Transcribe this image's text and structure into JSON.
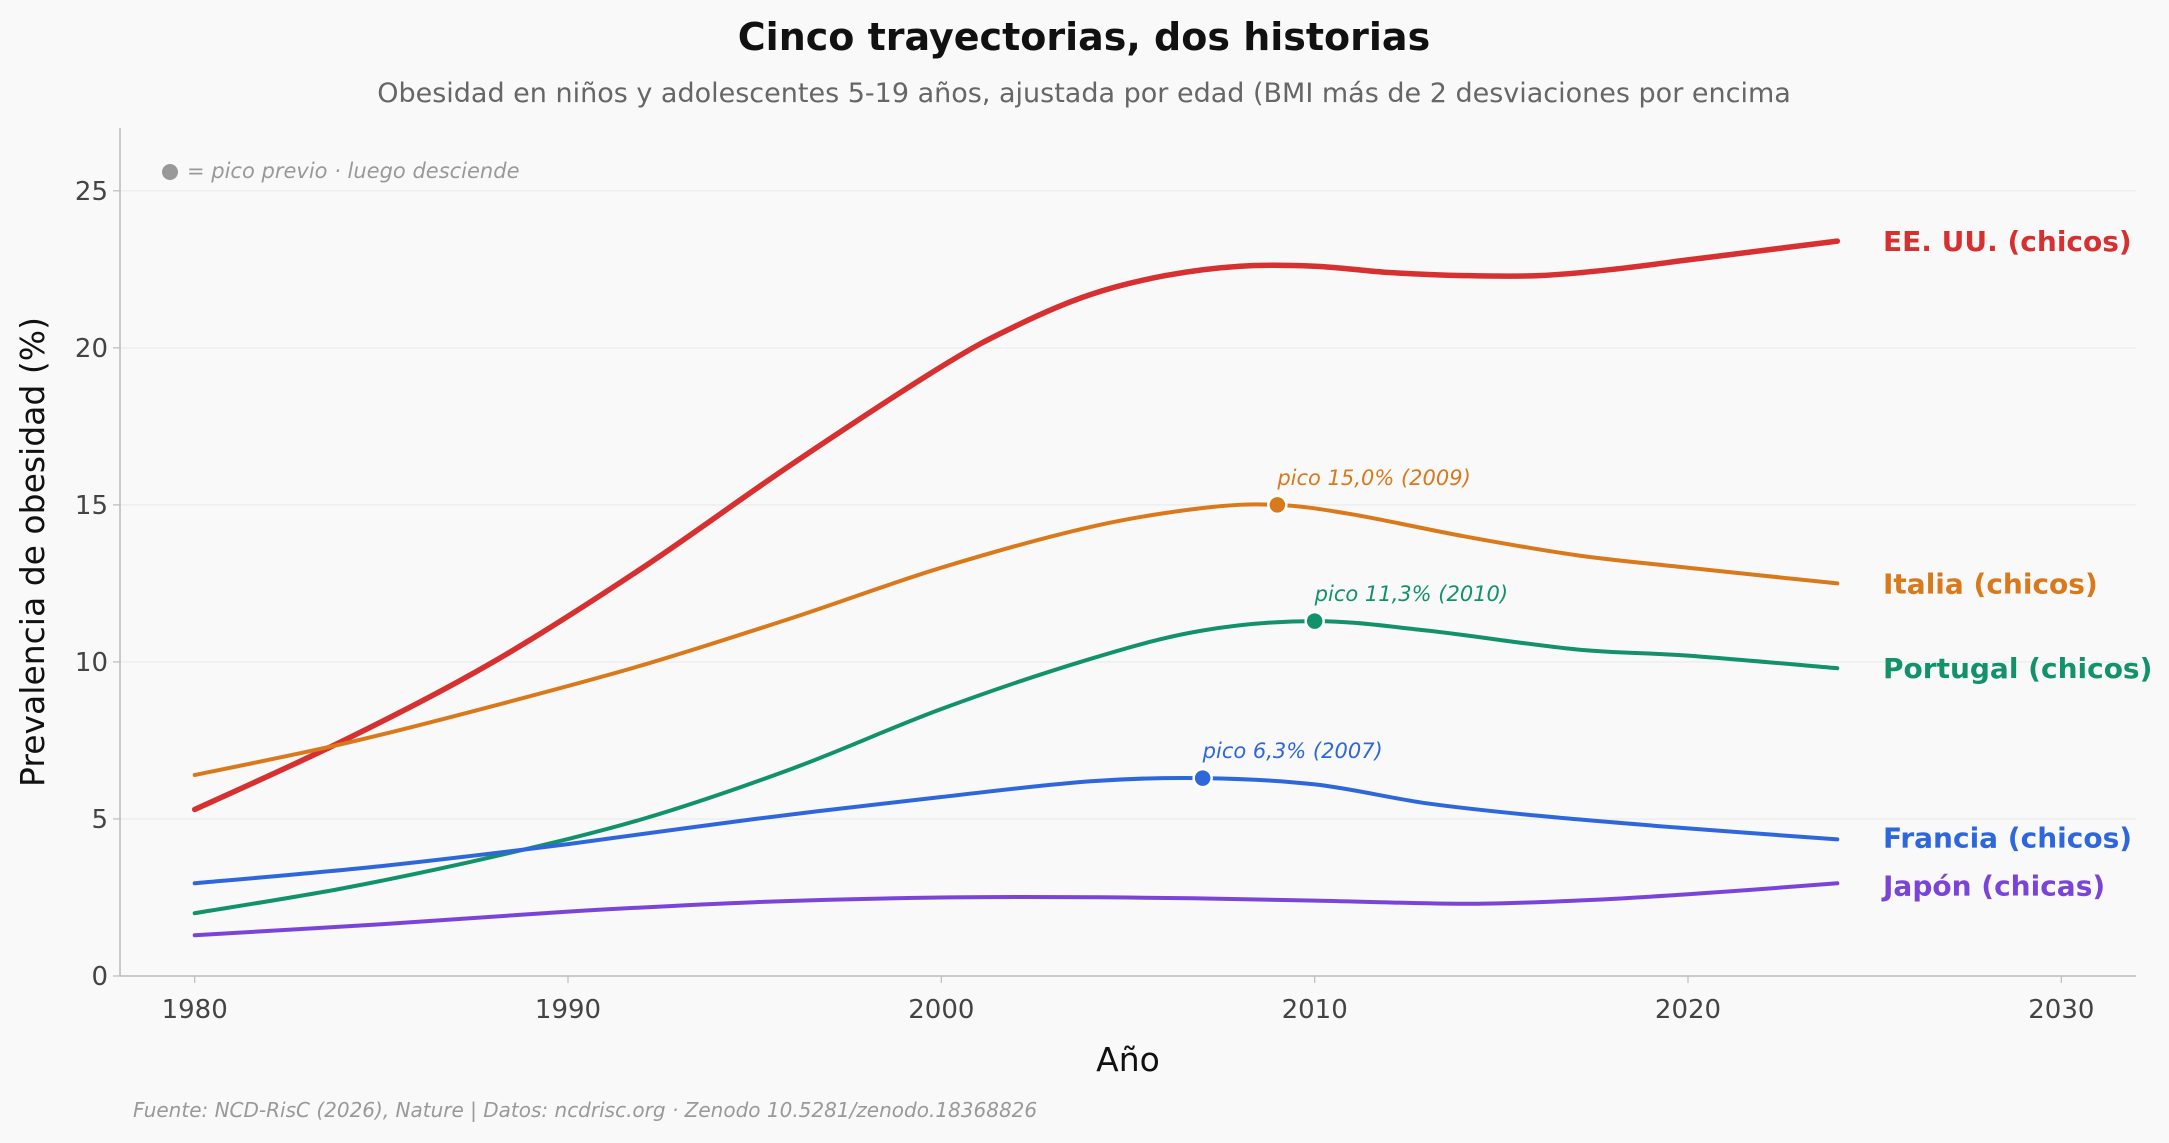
{
  "chart_data": {
    "type": "line",
    "title": "Cinco trayectorias, dos historias",
    "subtitle": "Obesidad en niños y adolescentes 5-19 años, ajustada por edad (BMI más de 2 desviaciones por encima",
    "xlabel": "Año",
    "ylabel": "Prevalencia de obesidad (%)",
    "xlim": [
      1978,
      2032
    ],
    "ylim": [
      0,
      27
    ],
    "xticks": [
      1980,
      1990,
      2000,
      2010,
      2020,
      2030
    ],
    "yticks": [
      0,
      5,
      10,
      15,
      20,
      25
    ],
    "grid": "horizontal",
    "legend_note": "● = pico previo · luego desciende",
    "source": "Fuente: NCD-RisC (2026), Nature | Datos: ncdrisc.org · Zenodo 10.5281/zenodo.18368826",
    "series": [
      {
        "name": "EE. UU. (chicos)",
        "color": "#d63031",
        "width": 5.5,
        "x": [
          1980,
          1984,
          1988,
          1992,
          1996,
          2000,
          2002,
          2004,
          2006,
          2008,
          2010,
          2012,
          2014,
          2016,
          2018,
          2020,
          2022,
          2024
        ],
        "y": [
          5.3,
          7.5,
          10.0,
          13.0,
          16.3,
          19.4,
          20.7,
          21.7,
          22.3,
          22.6,
          22.6,
          22.4,
          22.3,
          22.3,
          22.5,
          22.8,
          23.1,
          23.4
        ]
      },
      {
        "name": "Italia (chicos)",
        "color": "#d9791b",
        "width": 4,
        "x": [
          1980,
          1984,
          1988,
          1992,
          1996,
          2000,
          2004,
          2007,
          2009,
          2011,
          2014,
          2017,
          2020,
          2024
        ],
        "y": [
          6.4,
          7.4,
          8.6,
          9.9,
          11.4,
          13.0,
          14.3,
          14.9,
          15.0,
          14.7,
          14.0,
          13.4,
          13.0,
          12.5
        ],
        "peak": {
          "x": 2009,
          "y": 15.0,
          "label": "pico 15,0% (2009)"
        }
      },
      {
        "name": "Portugal (chicos)",
        "color": "#12926a",
        "width": 4,
        "x": [
          1980,
          1984,
          1988,
          1992,
          1996,
          2000,
          2004,
          2007,
          2010,
          2013,
          2017,
          2020,
          2024
        ],
        "y": [
          2.0,
          2.8,
          3.8,
          5.0,
          6.6,
          8.5,
          10.1,
          11.0,
          11.3,
          11.0,
          10.4,
          10.2,
          9.8
        ],
        "peak": {
          "x": 2010,
          "y": 11.3,
          "label": "pico 11,3% (2010)"
        }
      },
      {
        "name": "Francia (chicos)",
        "color": "#2e67dc",
        "width": 4,
        "x": [
          1980,
          1985,
          1990,
          1995,
          2000,
          2004,
          2007,
          2010,
          2013,
          2016,
          2020,
          2024
        ],
        "y": [
          2.95,
          3.5,
          4.2,
          5.0,
          5.7,
          6.2,
          6.3,
          6.1,
          5.5,
          5.1,
          4.7,
          4.35
        ],
        "peak": {
          "x": 2007,
          "y": 6.3,
          "label": "pico 6,3% (2007)"
        }
      },
      {
        "name": "Japón (chicas)",
        "color": "#7b44d9",
        "width": 4,
        "x": [
          1980,
          1985,
          1990,
          1995,
          2000,
          2005,
          2010,
          2014,
          2017,
          2020,
          2024
        ],
        "y": [
          1.3,
          1.65,
          2.05,
          2.35,
          2.5,
          2.5,
          2.4,
          2.3,
          2.4,
          2.6,
          2.95
        ]
      }
    ]
  }
}
